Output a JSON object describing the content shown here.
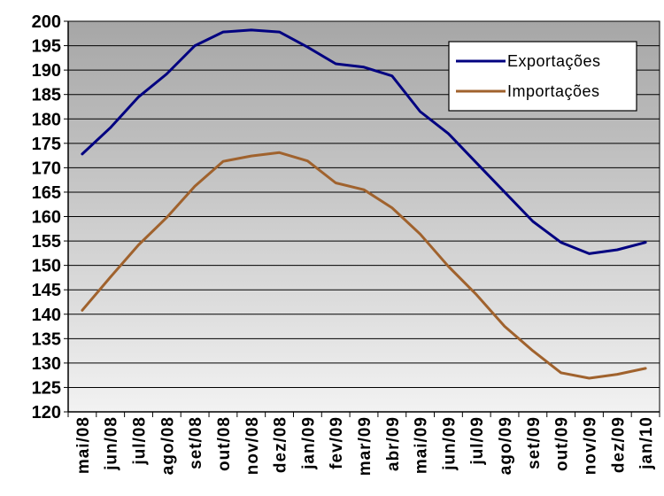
{
  "chart_data": {
    "type": "line",
    "title": "",
    "xlabel": "",
    "ylabel": "",
    "ylim": [
      120,
      200
    ],
    "yticks": [
      "120",
      "125",
      "130",
      "135",
      "140",
      "145",
      "150",
      "155",
      "160",
      "165",
      "170",
      "175",
      "180",
      "185",
      "190",
      "195",
      "200"
    ],
    "categories": [
      "mai/08",
      "jun/08",
      "jul/08",
      "ago/08",
      "set/08",
      "out/08",
      "nov/08",
      "dez/08",
      "jan/09",
      "fev/09",
      "mar/09",
      "abr/09",
      "mai/09",
      "jun/09",
      "jul/09",
      "ago/09",
      "set/09",
      "out/09",
      "nov/09",
      "dez/09",
      "jan/10"
    ],
    "grid": true,
    "legend_position": "top-right",
    "series": [
      {
        "name": "Exportações",
        "color": "#000080",
        "values": [
          172.8,
          178.2,
          184.5,
          189.2,
          195.0,
          197.8,
          198.2,
          197.8,
          194.7,
          191.3,
          190.6,
          188.8,
          181.5,
          177.0,
          171.0,
          165.0,
          159.0,
          154.7,
          152.4,
          153.2,
          154.7
        ]
      },
      {
        "name": "Importações",
        "color": "#A0622D",
        "values": [
          140.8,
          147.6,
          154.2,
          159.8,
          166.2,
          171.3,
          172.4,
          173.1,
          171.4,
          166.9,
          165.5,
          161.8,
          156.4,
          149.8,
          144.0,
          137.5,
          132.5,
          128.0,
          126.9,
          127.7,
          128.9
        ]
      }
    ]
  }
}
